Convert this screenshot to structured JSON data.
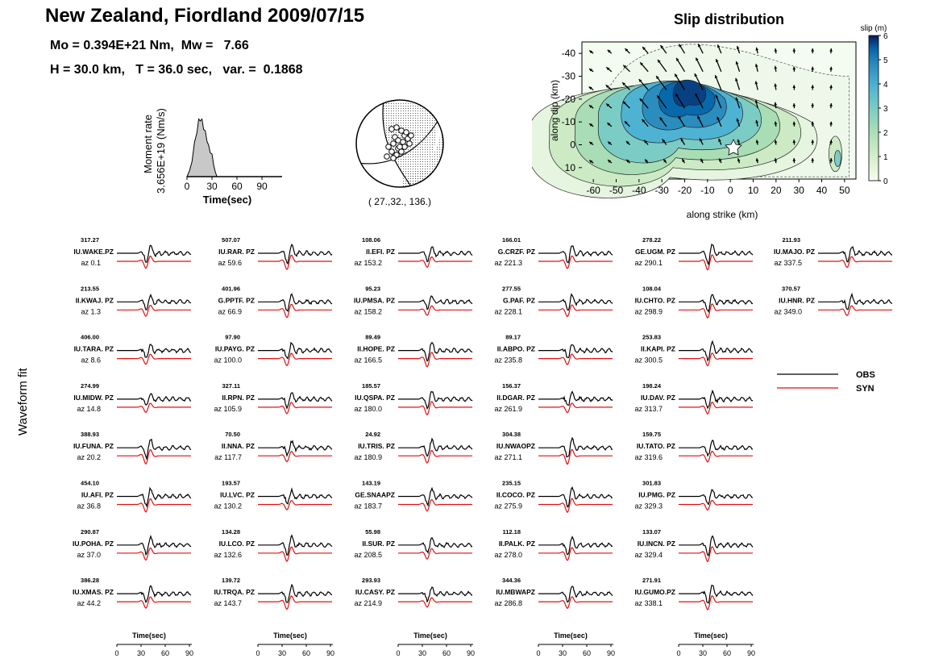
{
  "header": {
    "title": "New Zealand, Fiordland 2009/07/15",
    "mo_line": "Mo = 0.394E+21 Nm,  Mw =   7.66",
    "h_line": "H = 30.0 km,   T = 36.0 sec,   var. =  0.1868"
  },
  "stf": {
    "ylabel1": "Moment rate",
    "ylabel2": "3.656E+19 (Nm/s)",
    "xlabel": "Time(sec)",
    "ticks": [
      "0",
      "30",
      "60",
      "90"
    ]
  },
  "mechanism": {
    "label": "( 27.,32., 136.)"
  },
  "slip": {
    "title": "Slip distribution",
    "xlabel": "along strike (km)",
    "ylabel": "along dip (km)",
    "xticks": [
      "-60",
      "-50",
      "-40",
      "-30",
      "-20",
      "-10",
      "0",
      "10",
      "20",
      "30",
      "40",
      "50"
    ],
    "yticks": [
      "-40",
      "-30",
      "-20",
      "-10",
      "0",
      "10"
    ],
    "cbar_title": "slip (m)",
    "cbar_ticks": [
      "0",
      "1",
      "2",
      "3",
      "4",
      "5",
      "6"
    ]
  },
  "waveform": {
    "ylabel": "Waveform fit",
    "legend": {
      "obs": "OBS",
      "syn": "SYN"
    },
    "axis_label": "Time(sec)",
    "axis_ticks": [
      "0",
      "30",
      "60",
      "90"
    ],
    "obs_color": "#000000",
    "syn_color": "#e01010",
    "columns": [
      [
        {
          "amp": "317.27",
          "name": "IU.WAKE.PZ",
          "az": "az 0.1"
        },
        {
          "amp": "213.55",
          "name": "II.KWAJ.  PZ",
          "az": "az 1.3"
        },
        {
          "amp": "406.00",
          "name": "IU.TARA. PZ",
          "az": "az 8.6"
        },
        {
          "amp": "274.99",
          "name": "IU.MIDW. PZ",
          "az": "az 14.8"
        },
        {
          "amp": "388.93",
          "name": "IU.FUNA. PZ",
          "az": "az 20.2"
        },
        {
          "amp": "454.10",
          "name": "IU.AFI.   PZ",
          "az": "az 36.8"
        },
        {
          "amp": "290.87",
          "name": "IU.POHA. PZ",
          "az": "az 37.0"
        },
        {
          "amp": "386.28",
          "name": "IU.XMAS. PZ",
          "az": "az 44.2"
        }
      ],
      [
        {
          "amp": "507.07",
          "name": "IU.RAR.  PZ",
          "az": "az 59.6"
        },
        {
          "amp": "401.96",
          "name": "G.PPTF.  PZ",
          "az": "az 66.9"
        },
        {
          "amp": "97.90",
          "name": "IU.PAYG. PZ",
          "az": "az 100.0"
        },
        {
          "amp": "327.11",
          "name": "II.RPN.   PZ",
          "az": "az 105.9"
        },
        {
          "amp": "70.50",
          "name": "II.NNA.   PZ",
          "az": "az 117.7"
        },
        {
          "amp": "193.57",
          "name": "IU.LVC.  PZ",
          "az": "az 130.2"
        },
        {
          "amp": "134.28",
          "name": "IU.LCO.  PZ",
          "az": "az 132.6"
        },
        {
          "amp": "139.72",
          "name": "IU.TRQA. PZ",
          "az": "az 143.7"
        }
      ],
      [
        {
          "amp": "108.06",
          "name": "II.EFI.    PZ",
          "az": "az 153.2"
        },
        {
          "amp": "95.23",
          "name": "IU.PMSA. PZ",
          "az": "az 158.2"
        },
        {
          "amp": "89.49",
          "name": "II.HOPE.  PZ",
          "az": "az 166.5"
        },
        {
          "amp": "185.57",
          "name": "IU.QSPA. PZ",
          "az": "az 180.0"
        },
        {
          "amp": "24.92",
          "name": "IU.TRIS.  PZ",
          "az": "az 180.9"
        },
        {
          "amp": "143.19",
          "name": "GE.SNAAPZ",
          "az": "az 183.7"
        },
        {
          "amp": "55.98",
          "name": "II.SUR.   PZ",
          "az": "az 208.5"
        },
        {
          "amp": "293.93",
          "name": "IU.CASY. PZ",
          "az": "az 214.9"
        }
      ],
      [
        {
          "amp": "166.01",
          "name": "G.CRZF.  PZ",
          "az": "az 221.3"
        },
        {
          "amp": "277.55",
          "name": "G.PAF.    PZ",
          "az": "az 228.1"
        },
        {
          "amp": "89.17",
          "name": "II.ABPO.  PZ",
          "az": "az 235.8"
        },
        {
          "amp": "156.37",
          "name": "II.DGAR.  PZ",
          "az": "az 261.9"
        },
        {
          "amp": "304.38",
          "name": "IU.NWAOPZ",
          "az": "az 271.1"
        },
        {
          "amp": "235.15",
          "name": "II.COCO.  PZ",
          "az": "az 275.9"
        },
        {
          "amp": "112.18",
          "name": "II.PALK.  PZ",
          "az": "az 278.0"
        },
        {
          "amp": "344.36",
          "name": "IU.MBWAPZ",
          "az": "az 286.8"
        }
      ],
      [
        {
          "amp": "278.22",
          "name": "GE.UGM.  PZ",
          "az": "az 290.1"
        },
        {
          "amp": "108.04",
          "name": "IU.CHTO. PZ",
          "az": "az 298.9"
        },
        {
          "amp": "253.83",
          "name": "II.KAPI.  PZ",
          "az": "az 300.5"
        },
        {
          "amp": "198.24",
          "name": "IU.DAV.   PZ",
          "az": "az 313.7"
        },
        {
          "amp": "159.75",
          "name": "IU.TATO. PZ",
          "az": "az 319.6"
        },
        {
          "amp": "301.83",
          "name": "IU.PMG.  PZ",
          "az": "az 329.3"
        },
        {
          "amp": "133.07",
          "name": "IU.INCN.  PZ",
          "az": "az 329.4"
        },
        {
          "amp": "271.91",
          "name": "IU.GUMO.PZ",
          "az": "az 338.1"
        }
      ],
      [
        {
          "amp": "211.93",
          "name": "IU.MAJO. PZ",
          "az": "az 337.5"
        },
        {
          "amp": "370.57",
          "name": "IU.HNR.  PZ",
          "az": "az 349.0"
        }
      ]
    ]
  },
  "chart_data": [
    {
      "type": "area",
      "ylabel": "Moment rate 3.656E+19 (Nm/s)",
      "xlabel": "Time(sec)",
      "xlim": [
        0,
        100
      ],
      "x": [
        0,
        3,
        6,
        9,
        12,
        14,
        16,
        18,
        20,
        22,
        24,
        26,
        28,
        30,
        32,
        34,
        36
      ],
      "values": [
        0,
        0.1,
        0.3,
        0.55,
        0.8,
        0.95,
        1.0,
        0.95,
        0.85,
        0.75,
        0.65,
        0.5,
        0.45,
        0.35,
        0.2,
        0.08,
        0
      ]
    },
    {
      "type": "heatmap",
      "title": "Slip distribution",
      "xlabel": "along strike (km)",
      "ylabel": "along dip (km)",
      "xlim": [
        -65,
        55
      ],
      "ylim": [
        15,
        -45
      ],
      "colorbar": {
        "title": "slip (m)",
        "range": [
          0,
          6
        ]
      },
      "peak_slip": {
        "strike": -18,
        "dip": -23,
        "value": 6
      }
    }
  ]
}
